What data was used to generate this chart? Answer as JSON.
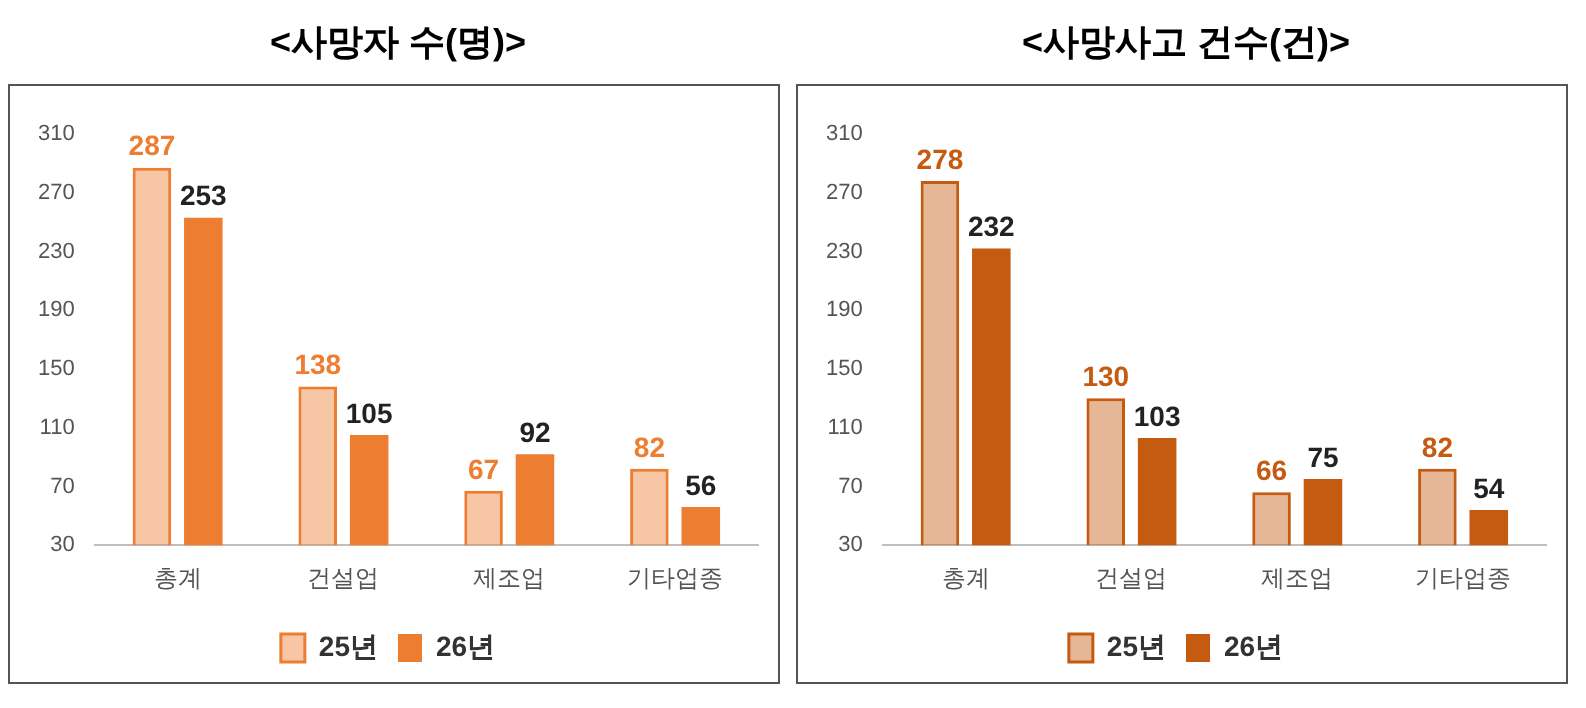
{
  "chart_data": [
    {
      "type": "bar",
      "title": "<사망자 수(명)>",
      "categories": [
        "총계",
        "건설업",
        "제조업",
        "기타업종"
      ],
      "series": [
        {
          "name": "25년",
          "color": "#ed7d31",
          "values": [
            287,
            138,
            67,
            82
          ]
        },
        {
          "name": "26년",
          "color": "#ed7d31",
          "values": [
            253,
            105,
            92,
            56
          ]
        }
      ],
      "ylim": [
        30,
        310
      ],
      "yticks": [
        30,
        70,
        110,
        150,
        190,
        230,
        270,
        310
      ],
      "grid": false,
      "legend": "bottom",
      "data_labels": true
    },
    {
      "type": "bar",
      "title": "<사망사고 건수(건)>",
      "categories": [
        "총계",
        "건설업",
        "제조업",
        "기타업종"
      ],
      "series": [
        {
          "name": "25년",
          "color": "#c55a11",
          "values": [
            278,
            130,
            66,
            82
          ]
        },
        {
          "name": "26년",
          "color": "#c55a11",
          "values": [
            232,
            103,
            75,
            54
          ]
        }
      ],
      "ylim": [
        30,
        310
      ],
      "yticks": [
        30,
        70,
        110,
        150,
        190,
        230,
        270,
        310
      ],
      "grid": false,
      "legend": "bottom",
      "data_labels": true
    }
  ]
}
